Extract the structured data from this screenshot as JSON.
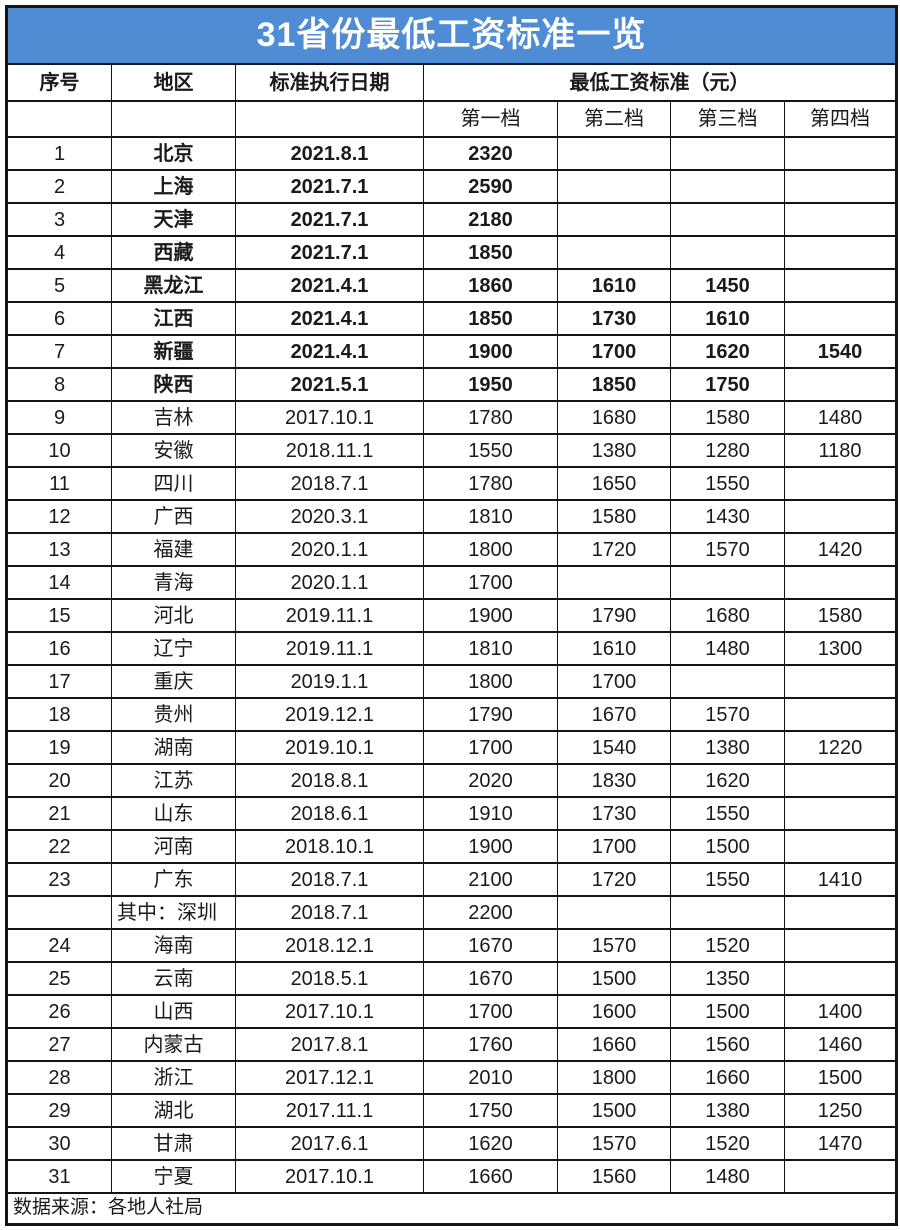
{
  "title": "31省份最低工资标准一览",
  "colors": {
    "header_blue": "#4f8cd3",
    "title_text": "#ffffff",
    "border": "#141414",
    "body_text": "#1a1a1a"
  },
  "table": {
    "col_headers": {
      "index": "序号",
      "region": "地区",
      "date": "标准执行日期",
      "wage_group": "最低工资标准（元）"
    },
    "tier_headers": [
      "第一档",
      "第二档",
      "第三档",
      "第四档"
    ],
    "rows": [
      {
        "no": "1",
        "region": "北京",
        "date": "2021.8.1",
        "t1": "2320",
        "t2": "",
        "t3": "",
        "t4": "",
        "bold": true
      },
      {
        "no": "2",
        "region": "上海",
        "date": "2021.7.1",
        "t1": "2590",
        "t2": "",
        "t3": "",
        "t4": "",
        "bold": true
      },
      {
        "no": "3",
        "region": "天津",
        "date": "2021.7.1",
        "t1": "2180",
        "t2": "",
        "t3": "",
        "t4": "",
        "bold": true
      },
      {
        "no": "4",
        "region": "西藏",
        "date": "2021.7.1",
        "t1": "1850",
        "t2": "",
        "t3": "",
        "t4": "",
        "bold": true
      },
      {
        "no": "5",
        "region": "黑龙江",
        "date": "2021.4.1",
        "t1": "1860",
        "t2": "1610",
        "t3": "1450",
        "t4": "",
        "bold": true
      },
      {
        "no": "6",
        "region": "江西",
        "date": "2021.4.1",
        "t1": "1850",
        "t2": "1730",
        "t3": "1610",
        "t4": "",
        "bold": true
      },
      {
        "no": "7",
        "region": "新疆",
        "date": "2021.4.1",
        "t1": "1900",
        "t2": "1700",
        "t3": "1620",
        "t4": "1540",
        "bold": true
      },
      {
        "no": "8",
        "region": "陕西",
        "date": "2021.5.1",
        "t1": "1950",
        "t2": "1850",
        "t3": "1750",
        "t4": "",
        "bold": true
      },
      {
        "no": "9",
        "region": "吉林",
        "date": "2017.10.1",
        "t1": "1780",
        "t2": "1680",
        "t3": "1580",
        "t4": "1480",
        "bold": false
      },
      {
        "no": "10",
        "region": "安徽",
        "date": "2018.11.1",
        "t1": "1550",
        "t2": "1380",
        "t3": "1280",
        "t4": "1180",
        "bold": false
      },
      {
        "no": "11",
        "region": "四川",
        "date": "2018.7.1",
        "t1": "1780",
        "t2": "1650",
        "t3": "1550",
        "t4": "",
        "bold": false
      },
      {
        "no": "12",
        "region": "广西",
        "date": "2020.3.1",
        "t1": "1810",
        "t2": "1580",
        "t3": "1430",
        "t4": "",
        "bold": false
      },
      {
        "no": "13",
        "region": "福建",
        "date": "2020.1.1",
        "t1": "1800",
        "t2": "1720",
        "t3": "1570",
        "t4": "1420",
        "bold": false
      },
      {
        "no": "14",
        "region": "青海",
        "date": "2020.1.1",
        "t1": "1700",
        "t2": "",
        "t3": "",
        "t4": "",
        "bold": false
      },
      {
        "no": "15",
        "region": "河北",
        "date": "2019.11.1",
        "t1": "1900",
        "t2": "1790",
        "t3": "1680",
        "t4": "1580",
        "bold": false
      },
      {
        "no": "16",
        "region": "辽宁",
        "date": "2019.11.1",
        "t1": "1810",
        "t2": "1610",
        "t3": "1480",
        "t4": "1300",
        "bold": false
      },
      {
        "no": "17",
        "region": "重庆",
        "date": "2019.1.1",
        "t1": "1800",
        "t2": "1700",
        "t3": "",
        "t4": "",
        "bold": false
      },
      {
        "no": "18",
        "region": "贵州",
        "date": "2019.12.1",
        "t1": "1790",
        "t2": "1670",
        "t3": "1570",
        "t4": "",
        "bold": false
      },
      {
        "no": "19",
        "region": "湖南",
        "date": "2019.10.1",
        "t1": "1700",
        "t2": "1540",
        "t3": "1380",
        "t4": "1220",
        "bold": false
      },
      {
        "no": "20",
        "region": "江苏",
        "date": "2018.8.1",
        "t1": "2020",
        "t2": "1830",
        "t3": "1620",
        "t4": "",
        "bold": false
      },
      {
        "no": "21",
        "region": "山东",
        "date": "2018.6.1",
        "t1": "1910",
        "t2": "1730",
        "t3": "1550",
        "t4": "",
        "bold": false
      },
      {
        "no": "22",
        "region": "河南",
        "date": "2018.10.1",
        "t1": "1900",
        "t2": "1700",
        "t3": "1500",
        "t4": "",
        "bold": false
      },
      {
        "no": "23",
        "region": "广东",
        "date": "2018.7.1",
        "t1": "2100",
        "t2": "1720",
        "t3": "1550",
        "t4": "1410",
        "bold": false
      },
      {
        "no": "",
        "region": "其中：深圳",
        "date": "2018.7.1",
        "t1": "2200",
        "t2": "",
        "t3": "",
        "t4": "",
        "bold": false
      },
      {
        "no": "24",
        "region": "海南",
        "date": "2018.12.1",
        "t1": "1670",
        "t2": "1570",
        "t3": "1520",
        "t4": "",
        "bold": false
      },
      {
        "no": "25",
        "region": "云南",
        "date": "2018.5.1",
        "t1": "1670",
        "t2": "1500",
        "t3": "1350",
        "t4": "",
        "bold": false
      },
      {
        "no": "26",
        "region": "山西",
        "date": "2017.10.1",
        "t1": "1700",
        "t2": "1600",
        "t3": "1500",
        "t4": "1400",
        "bold": false
      },
      {
        "no": "27",
        "region": "内蒙古",
        "date": "2017.8.1",
        "t1": "1760",
        "t2": "1660",
        "t3": "1560",
        "t4": "1460",
        "bold": false
      },
      {
        "no": "28",
        "region": "浙江",
        "date": "2017.12.1",
        "t1": "2010",
        "t2": "1800",
        "t3": "1660",
        "t4": "1500",
        "bold": false
      },
      {
        "no": "29",
        "region": "湖北",
        "date": "2017.11.1",
        "t1": "1750",
        "t2": "1500",
        "t3": "1380",
        "t4": "1250",
        "bold": false
      },
      {
        "no": "30",
        "region": "甘肃",
        "date": "2017.6.1",
        "t1": "1620",
        "t2": "1570",
        "t3": "1520",
        "t4": "1470",
        "bold": false
      },
      {
        "no": "31",
        "region": "宁夏",
        "date": "2017.10.1",
        "t1": "1660",
        "t2": "1560",
        "t3": "1480",
        "t4": "",
        "bold": false
      }
    ]
  },
  "footer": "数据来源：各地人社局"
}
